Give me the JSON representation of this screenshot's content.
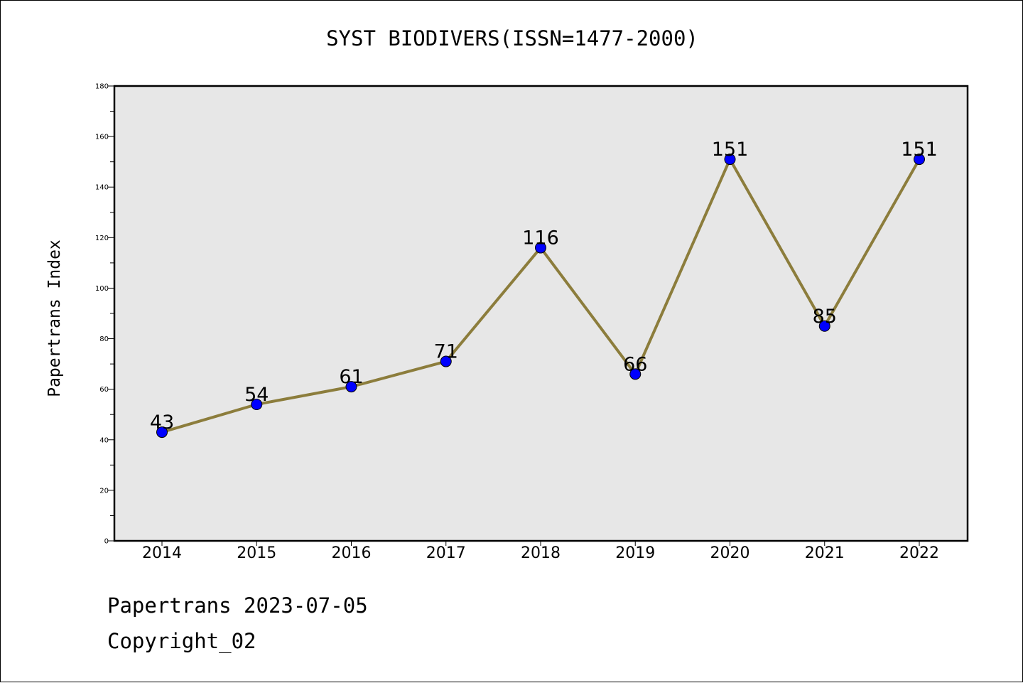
{
  "chart_data": {
    "type": "line",
    "title": "SYST BIODIVERS(ISSN=1477-2000)",
    "xlabel": "",
    "ylabel": "Papertrans Index",
    "categories": [
      "2014",
      "2015",
      "2016",
      "2017",
      "2018",
      "2019",
      "2020",
      "2021",
      "2022"
    ],
    "series": [
      {
        "values": [
          43,
          54,
          61,
          71,
          116,
          66,
          151,
          85,
          151
        ]
      }
    ],
    "ylim": [
      0,
      180
    ],
    "yticks": [
      0,
      20,
      40,
      60,
      80,
      100,
      120,
      140,
      160,
      180
    ],
    "grid": false,
    "data_labels": true,
    "colors": {
      "plot_background": "#e7e7e7",
      "line": "#8c7d3c",
      "marker": "#0000ff"
    }
  },
  "footer": {
    "line1": "Papertrans 2023-07-05",
    "line2": "Copyright_02"
  }
}
